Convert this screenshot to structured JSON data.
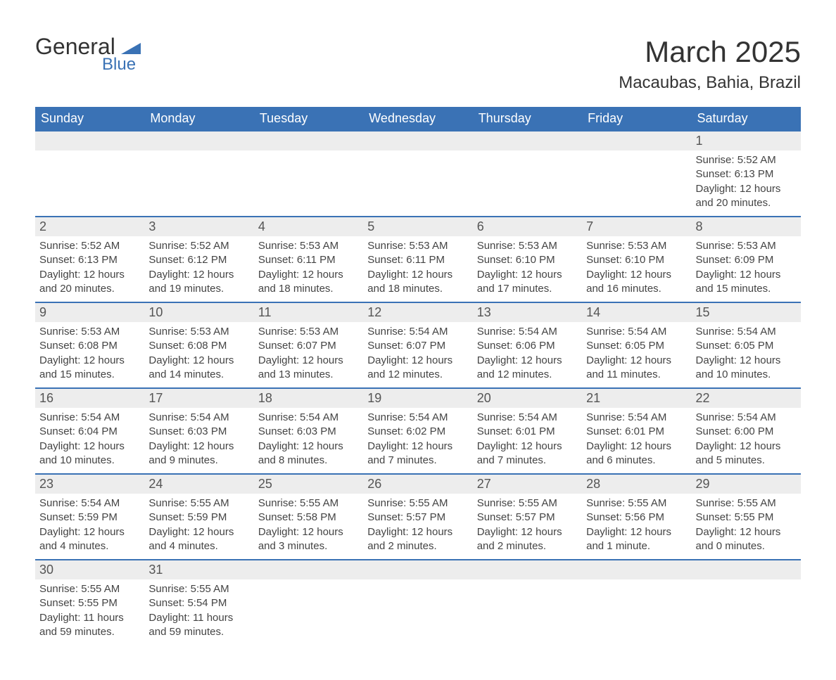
{
  "logo": {
    "line1": "General",
    "line2": "Blue"
  },
  "title": "March 2025",
  "location": "Macaubas, Bahia, Brazil",
  "colors": {
    "header_bg": "#3a72b5",
    "header_text": "#ffffff",
    "daynum_bg": "#ededed",
    "row_border": "#3a72b5",
    "body_text": "#444444",
    "logo_blue": "#3a72b5"
  },
  "daysOfWeek": [
    "Sunday",
    "Monday",
    "Tuesday",
    "Wednesday",
    "Thursday",
    "Friday",
    "Saturday"
  ],
  "weeks": [
    [
      null,
      null,
      null,
      null,
      null,
      null,
      {
        "n": "1",
        "sunrise": "5:52 AM",
        "sunset": "6:13 PM",
        "daylight": "12 hours and 20 minutes."
      }
    ],
    [
      {
        "n": "2",
        "sunrise": "5:52 AM",
        "sunset": "6:13 PM",
        "daylight": "12 hours and 20 minutes."
      },
      {
        "n": "3",
        "sunrise": "5:52 AM",
        "sunset": "6:12 PM",
        "daylight": "12 hours and 19 minutes."
      },
      {
        "n": "4",
        "sunrise": "5:53 AM",
        "sunset": "6:11 PM",
        "daylight": "12 hours and 18 minutes."
      },
      {
        "n": "5",
        "sunrise": "5:53 AM",
        "sunset": "6:11 PM",
        "daylight": "12 hours and 18 minutes."
      },
      {
        "n": "6",
        "sunrise": "5:53 AM",
        "sunset": "6:10 PM",
        "daylight": "12 hours and 17 minutes."
      },
      {
        "n": "7",
        "sunrise": "5:53 AM",
        "sunset": "6:10 PM",
        "daylight": "12 hours and 16 minutes."
      },
      {
        "n": "8",
        "sunrise": "5:53 AM",
        "sunset": "6:09 PM",
        "daylight": "12 hours and 15 minutes."
      }
    ],
    [
      {
        "n": "9",
        "sunrise": "5:53 AM",
        "sunset": "6:08 PM",
        "daylight": "12 hours and 15 minutes."
      },
      {
        "n": "10",
        "sunrise": "5:53 AM",
        "sunset": "6:08 PM",
        "daylight": "12 hours and 14 minutes."
      },
      {
        "n": "11",
        "sunrise": "5:53 AM",
        "sunset": "6:07 PM",
        "daylight": "12 hours and 13 minutes."
      },
      {
        "n": "12",
        "sunrise": "5:54 AM",
        "sunset": "6:07 PM",
        "daylight": "12 hours and 12 minutes."
      },
      {
        "n": "13",
        "sunrise": "5:54 AM",
        "sunset": "6:06 PM",
        "daylight": "12 hours and 12 minutes."
      },
      {
        "n": "14",
        "sunrise": "5:54 AM",
        "sunset": "6:05 PM",
        "daylight": "12 hours and 11 minutes."
      },
      {
        "n": "15",
        "sunrise": "5:54 AM",
        "sunset": "6:05 PM",
        "daylight": "12 hours and 10 minutes."
      }
    ],
    [
      {
        "n": "16",
        "sunrise": "5:54 AM",
        "sunset": "6:04 PM",
        "daylight": "12 hours and 10 minutes."
      },
      {
        "n": "17",
        "sunrise": "5:54 AM",
        "sunset": "6:03 PM",
        "daylight": "12 hours and 9 minutes."
      },
      {
        "n": "18",
        "sunrise": "5:54 AM",
        "sunset": "6:03 PM",
        "daylight": "12 hours and 8 minutes."
      },
      {
        "n": "19",
        "sunrise": "5:54 AM",
        "sunset": "6:02 PM",
        "daylight": "12 hours and 7 minutes."
      },
      {
        "n": "20",
        "sunrise": "5:54 AM",
        "sunset": "6:01 PM",
        "daylight": "12 hours and 7 minutes."
      },
      {
        "n": "21",
        "sunrise": "5:54 AM",
        "sunset": "6:01 PM",
        "daylight": "12 hours and 6 minutes."
      },
      {
        "n": "22",
        "sunrise": "5:54 AM",
        "sunset": "6:00 PM",
        "daylight": "12 hours and 5 minutes."
      }
    ],
    [
      {
        "n": "23",
        "sunrise": "5:54 AM",
        "sunset": "5:59 PM",
        "daylight": "12 hours and 4 minutes."
      },
      {
        "n": "24",
        "sunrise": "5:55 AM",
        "sunset": "5:59 PM",
        "daylight": "12 hours and 4 minutes."
      },
      {
        "n": "25",
        "sunrise": "5:55 AM",
        "sunset": "5:58 PM",
        "daylight": "12 hours and 3 minutes."
      },
      {
        "n": "26",
        "sunrise": "5:55 AM",
        "sunset": "5:57 PM",
        "daylight": "12 hours and 2 minutes."
      },
      {
        "n": "27",
        "sunrise": "5:55 AM",
        "sunset": "5:57 PM",
        "daylight": "12 hours and 2 minutes."
      },
      {
        "n": "28",
        "sunrise": "5:55 AM",
        "sunset": "5:56 PM",
        "daylight": "12 hours and 1 minute."
      },
      {
        "n": "29",
        "sunrise": "5:55 AM",
        "sunset": "5:55 PM",
        "daylight": "12 hours and 0 minutes."
      }
    ],
    [
      {
        "n": "30",
        "sunrise": "5:55 AM",
        "sunset": "5:55 PM",
        "daylight": "11 hours and 59 minutes."
      },
      {
        "n": "31",
        "sunrise": "5:55 AM",
        "sunset": "5:54 PM",
        "daylight": "11 hours and 59 minutes."
      },
      null,
      null,
      null,
      null,
      null
    ]
  ],
  "labels": {
    "sunrise": "Sunrise: ",
    "sunset": "Sunset: ",
    "daylight": "Daylight: "
  }
}
